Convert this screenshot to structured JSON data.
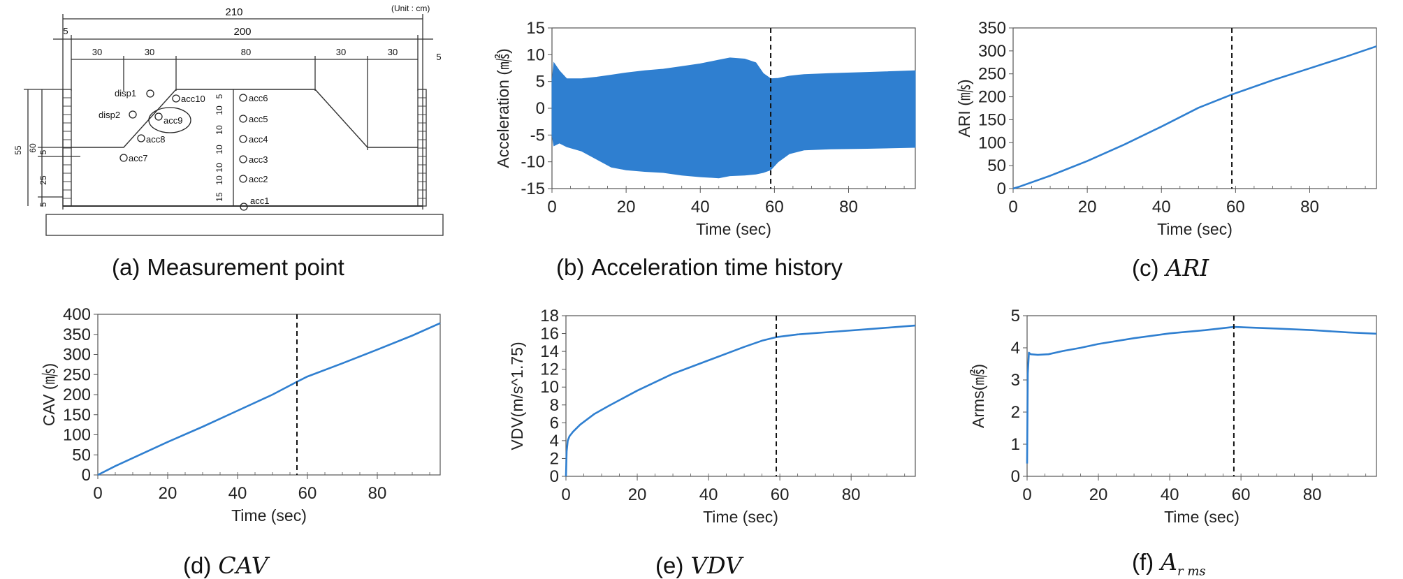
{
  "diagram": {
    "unit_label": "(Unit : cm)",
    "dimensions": {
      "total": "210",
      "inner": "200",
      "end_left": "5",
      "end_right": "5",
      "seg1": "30",
      "seg2": "30",
      "seg3": "80",
      "seg4": "30",
      "seg5": "30",
      "height_total": "55",
      "height_60": "60",
      "height_5": "5",
      "height_25": "25",
      "height_5_bottom": "5",
      "column_stack": [
        "5",
        "10",
        "10",
        "10",
        "10",
        "10",
        "15"
      ]
    },
    "sensors": {
      "disp1": "disp1",
      "disp2": "disp2",
      "acc10": "acc10",
      "acc9": "acc9",
      "acc8": "acc8",
      "acc7": "acc7",
      "acc6": "acc6",
      "acc5": "acc5",
      "acc4": "acc4",
      "acc3": "acc3",
      "acc2": "acc2",
      "acc1": "acc1"
    }
  },
  "captions": {
    "a": {
      "label": "(a)",
      "text": "Measurement point"
    },
    "b": {
      "label": "(b)",
      "text": "Acceleration time history"
    },
    "c": {
      "label": "(c)",
      "math": "ARI"
    },
    "d": {
      "label": "(d)",
      "math": "CAV"
    },
    "e": {
      "label": "(e)",
      "math": "VDV"
    },
    "f": {
      "label": "(f)",
      "math_main": "A",
      "math_sub": "r ms"
    }
  },
  "colors": {
    "series": "#2f7fd0",
    "axis": "#555555",
    "marker": "#111111"
  },
  "chart_data": [
    {
      "id": "b",
      "type": "line",
      "title": "",
      "xlabel": "Time (sec)",
      "ylabel": "Acceleration (㎨)",
      "xlim": [
        0,
        98
      ],
      "ylim": [
        -15,
        15
      ],
      "xticks": [
        0,
        20,
        40,
        60,
        80
      ],
      "yticks": [
        -15,
        -10,
        -5,
        0,
        5,
        10,
        15
      ],
      "marker_x": 59,
      "envelope": {
        "x": [
          0,
          0.5,
          2,
          4,
          8,
          12,
          16,
          20,
          25,
          30,
          35,
          40,
          45,
          48,
          52,
          55,
          57,
          59,
          61,
          64,
          68,
          75,
          85,
          98
        ],
        "upper": [
          5,
          8.5,
          7,
          5.5,
          5.5,
          5.8,
          6.2,
          6.6,
          7,
          7.3,
          7.8,
          8.3,
          9,
          9.4,
          9.2,
          8.5,
          6.5,
          5.5,
          5.6,
          6,
          6.3,
          6.5,
          6.7,
          7
        ],
        "lower": [
          -5,
          -7,
          -6.5,
          -7.2,
          -8,
          -9.5,
          -11,
          -11.5,
          -11.8,
          -12,
          -12.5,
          -12.8,
          -13,
          -12.6,
          -12.5,
          -12.3,
          -12,
          -11.5,
          -10,
          -8.5,
          -7.8,
          -7.6,
          -7.5,
          -7.3
        ]
      }
    },
    {
      "id": "c",
      "type": "line",
      "title": "",
      "xlabel": "Time (sec)",
      "ylabel": "ARI (㎧)",
      "xlim": [
        0,
        98
      ],
      "ylim": [
        0,
        350
      ],
      "xticks": [
        0,
        20,
        40,
        60,
        80
      ],
      "yticks": [
        0,
        50,
        100,
        150,
        200,
        250,
        300,
        350
      ],
      "marker_x": 59,
      "x": [
        0,
        2,
        10,
        20,
        30,
        40,
        50,
        59,
        70,
        80,
        90,
        98
      ],
      "y": [
        0,
        5,
        28,
        60,
        96,
        135,
        176,
        205,
        236,
        262,
        288,
        310
      ]
    },
    {
      "id": "d",
      "type": "line",
      "title": "",
      "xlabel": "Time (sec)",
      "ylabel": "CAV (㎧)",
      "xlim": [
        0,
        98
      ],
      "ylim": [
        0,
        400
      ],
      "xticks": [
        0,
        20,
        40,
        60,
        80
      ],
      "yticks": [
        0,
        50,
        100,
        150,
        200,
        250,
        300,
        350,
        400
      ],
      "marker_x": 57,
      "x": [
        0,
        5,
        10,
        20,
        30,
        40,
        50,
        57,
        60,
        70,
        80,
        90,
        98
      ],
      "y": [
        0,
        22,
        42,
        82,
        120,
        160,
        200,
        232,
        245,
        278,
        312,
        347,
        378
      ]
    },
    {
      "id": "e",
      "type": "line",
      "title": "",
      "xlabel": "Time (sec)",
      "ylabel": "VDV(m/s^1.75)",
      "xlim": [
        0,
        98
      ],
      "ylim": [
        0,
        18
      ],
      "xticks": [
        0,
        20,
        40,
        60,
        80
      ],
      "yticks": [
        0,
        2,
        4,
        6,
        8,
        10,
        12,
        14,
        16,
        18
      ],
      "marker_x": 59,
      "x": [
        0,
        0.2,
        0.5,
        1,
        2,
        4,
        8,
        12,
        20,
        30,
        40,
        50,
        55,
        59,
        65,
        75,
        85,
        98
      ],
      "y": [
        0,
        2.8,
        4,
        4.5,
        5,
        5.8,
        7,
        7.9,
        9.6,
        11.5,
        13,
        14.5,
        15.2,
        15.6,
        15.9,
        16.2,
        16.5,
        16.9
      ]
    },
    {
      "id": "f",
      "type": "line",
      "title": "",
      "xlabel": "Time (sec)",
      "ylabel": "Arms(㎨)",
      "xlim": [
        0,
        98
      ],
      "ylim": [
        0,
        5
      ],
      "xticks": [
        0,
        20,
        40,
        60,
        80
      ],
      "yticks": [
        0,
        1,
        2,
        3,
        4,
        5
      ],
      "marker_x": 58,
      "x": [
        0,
        0.2,
        0.5,
        1,
        3,
        6,
        10,
        15,
        20,
        30,
        40,
        50,
        58,
        70,
        80,
        90,
        98
      ],
      "y": [
        0.4,
        3.2,
        3.85,
        3.8,
        3.78,
        3.8,
        3.9,
        4.0,
        4.12,
        4.3,
        4.45,
        4.55,
        4.65,
        4.6,
        4.55,
        4.48,
        4.44
      ]
    }
  ]
}
